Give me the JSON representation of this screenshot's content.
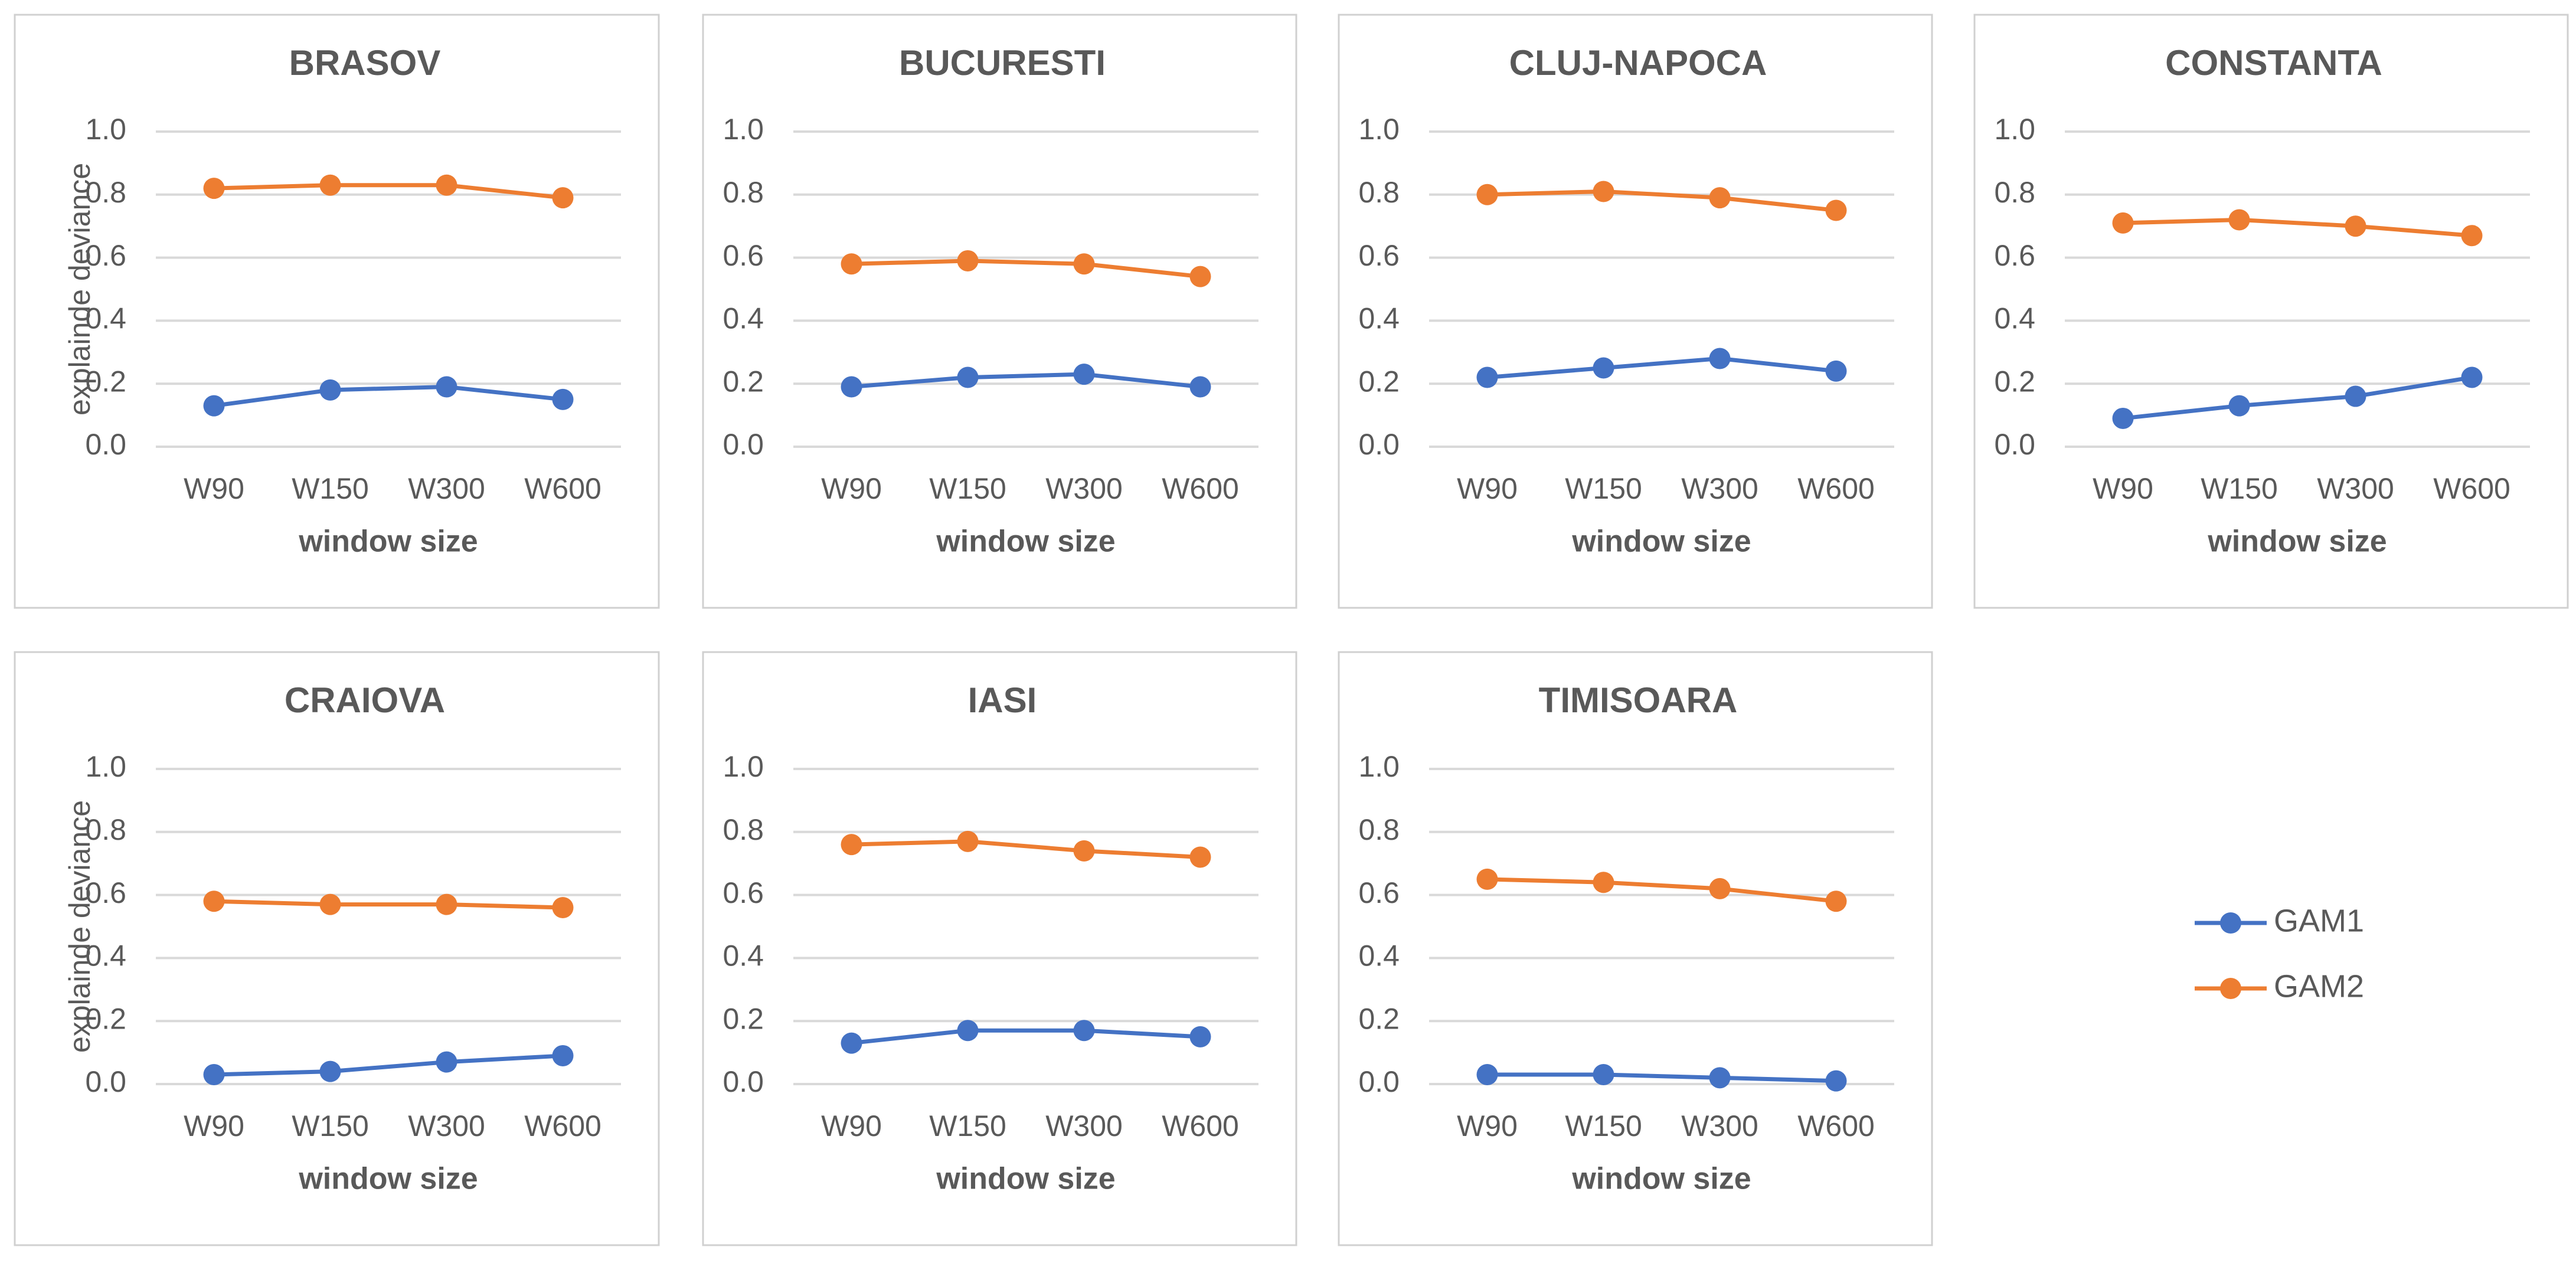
{
  "chart_data": [
    {
      "type": "line",
      "title": "BRASOV",
      "xlabel": "window size",
      "ylabel": "explainde deviance",
      "categories": [
        "W90",
        "W150",
        "W300",
        "W600"
      ],
      "series": [
        {
          "name": "GAM1",
          "color": "#4472c4",
          "values": [
            0.13,
            0.18,
            0.19,
            0.15
          ]
        },
        {
          "name": "GAM2",
          "color": "#ed7d31",
          "values": [
            0.82,
            0.83,
            0.83,
            0.79
          ]
        }
      ],
      "ylim": [
        0,
        1
      ],
      "yticks": [
        {
          "value": 0,
          "label": "0.0"
        },
        0.2,
        0.4,
        0.6,
        0.8,
        {
          "value": 1,
          "label": "1.0"
        }
      ],
      "grid": true
    },
    {
      "type": "line",
      "title": "BUCURESTI",
      "xlabel": "window size",
      "categories": [
        "W90",
        "W150",
        "W300",
        "W600"
      ],
      "series": [
        {
          "color": "#4472c4",
          "values": [
            0.19,
            0.22,
            0.23,
            0.19
          ]
        },
        {
          "color": "#ed7d31",
          "values": [
            0.58,
            0.59,
            0.58,
            0.54
          ]
        }
      ],
      "ylim": [
        0,
        1
      ],
      "yticks": [
        {
          "value": 0,
          "label": "0.0"
        },
        0.2,
        0.4,
        0.6,
        0.8,
        {
          "value": 1,
          "label": "1.0"
        }
      ],
      "grid": true
    },
    {
      "type": "line",
      "title": "CLUJ-NAPOCA",
      "xlabel": "window size",
      "categories": [
        "W90",
        "W150",
        "W300",
        "W600"
      ],
      "series": [
        {
          "color": "#4472c4",
          "values": [
            0.22,
            0.25,
            0.28,
            0.24
          ]
        },
        {
          "color": "#ed7d31",
          "values": [
            0.8,
            0.81,
            0.79,
            0.75
          ]
        }
      ],
      "ylim": [
        0,
        1
      ],
      "yticks": [
        {
          "value": 0,
          "label": "0.0"
        },
        0.2,
        0.4,
        0.6,
        0.8,
        {
          "value": 1,
          "label": "1.0"
        }
      ],
      "grid": true
    },
    {
      "type": "line",
      "title": "CONSTANTA",
      "xlabel": "window size",
      "categories": [
        "W90",
        "W150",
        "W300",
        "W600"
      ],
      "series": [
        {
          "color": "#4472c4",
          "values": [
            0.09,
            0.13,
            0.16,
            0.22
          ]
        },
        {
          "color": "#ed7d31",
          "values": [
            0.71,
            0.72,
            0.7,
            0.67
          ]
        }
      ],
      "ylim": [
        0,
        1
      ],
      "yticks": [
        {
          "value": 0,
          "label": "0.0"
        },
        0.2,
        0.4,
        0.6,
        0.8,
        {
          "value": 1,
          "label": "1.0"
        }
      ],
      "grid": true
    },
    {
      "type": "line",
      "title": "CRAIOVA",
      "xlabel": "window size",
      "ylabel": "explainde deviance",
      "categories": [
        "W90",
        "W150",
        "W300",
        "W600"
      ],
      "series": [
        {
          "color": "#4472c4",
          "values": [
            0.03,
            0.04,
            0.07,
            0.09
          ]
        },
        {
          "color": "#ed7d31",
          "values": [
            0.58,
            0.57,
            0.57,
            0.56
          ]
        }
      ],
      "ylim": [
        0,
        1
      ],
      "yticks": [
        {
          "value": 0,
          "label": "0.0"
        },
        0.2,
        0.4,
        0.6,
        0.8,
        {
          "value": 1,
          "label": "1.0"
        }
      ],
      "grid": true
    },
    {
      "type": "line",
      "title": "IASI",
      "xlabel": "window size",
      "categories": [
        "W90",
        "W150",
        "W300",
        "W600"
      ],
      "series": [
        {
          "color": "#4472c4",
          "values": [
            0.13,
            0.17,
            0.17,
            0.15
          ]
        },
        {
          "color": "#ed7d31",
          "values": [
            0.76,
            0.77,
            0.74,
            0.72
          ]
        }
      ],
      "ylim": [
        0,
        1
      ],
      "yticks": [
        {
          "value": 0,
          "label": "0.0"
        },
        0.2,
        0.4,
        0.6,
        0.8,
        {
          "value": 1,
          "label": "1.0"
        }
      ],
      "grid": true
    },
    {
      "type": "line",
      "title": "TIMISOARA",
      "xlabel": "window size",
      "categories": [
        "W90",
        "W150",
        "W300",
        "W600"
      ],
      "series": [
        {
          "color": "#4472c4",
          "values": [
            0.03,
            0.03,
            0.02,
            0.01
          ]
        },
        {
          "color": "#ed7d31",
          "values": [
            0.65,
            0.64,
            0.62,
            0.58
          ]
        }
      ],
      "ylim": [
        0,
        1
      ],
      "yticks": [
        {
          "value": 0,
          "label": "0.0"
        },
        0.2,
        0.4,
        0.6,
        0.8,
        {
          "value": 1,
          "label": "1.0"
        }
      ],
      "grid": true
    }
  ]
}
